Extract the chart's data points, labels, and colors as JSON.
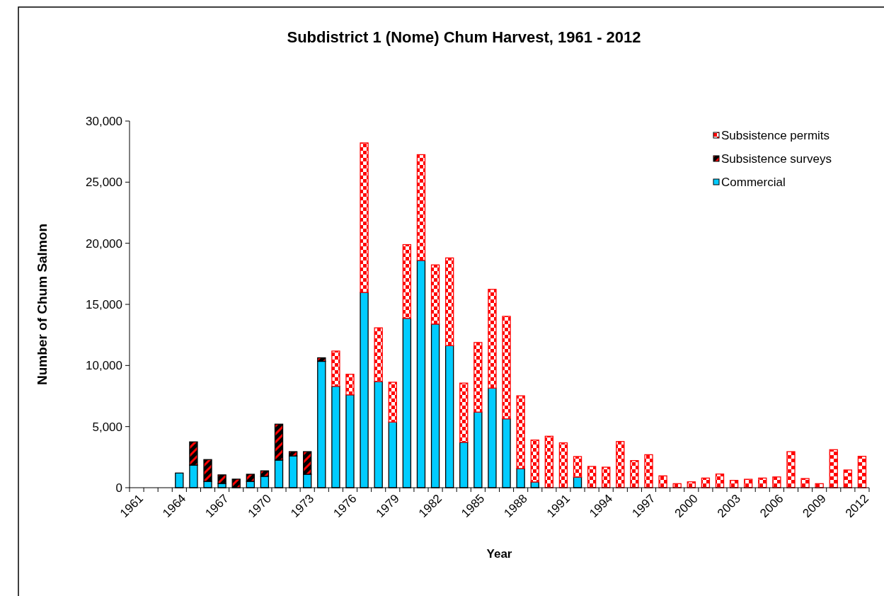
{
  "chart_data": {
    "type": "bar",
    "title": "Subdistrict 1 (Nome) Chum Harvest, 1961 - 2012",
    "xlabel": "Year",
    "ylabel": "Number of Chum Salmon",
    "stacked": true,
    "legend": "top right",
    "grid": false,
    "categories": [
      "1961",
      null,
      null,
      "1964",
      null,
      null,
      "1967",
      null,
      null,
      "1970",
      null,
      null,
      "1973",
      null,
      null,
      "1976",
      null,
      null,
      "1979",
      null,
      null,
      "1982",
      null,
      null,
      "1985",
      null,
      null,
      "1988",
      null,
      null,
      "1991",
      null,
      null,
      "1994",
      null,
      null,
      "1997",
      null,
      null,
      "2000",
      null,
      null,
      "2003",
      null,
      null,
      "2006",
      null,
      null,
      "2009",
      null,
      null,
      "2012"
    ],
    "ylim": [
      0,
      30000
    ],
    "yticks": [
      0,
      {
        "value": 5000,
        "label": "5,000"
      },
      {
        "value": 10000,
        "label": "10,000"
      },
      {
        "value": 15000,
        "label": "15,000"
      },
      {
        "value": 20000,
        "label": "20,000"
      },
      {
        "value": 25000,
        "label": "25,000"
      },
      {
        "value": 30000,
        "label": "30,000"
      }
    ],
    "series": [
      {
        "name": "Commercial",
        "color": "#00ccff",
        "values": [
          null,
          null,
          null,
          1200,
          1850,
          520,
          350,
          null,
          520,
          930,
          2260,
          2600,
          1100,
          10340,
          8300,
          7600,
          15980,
          8690,
          5370,
          13860,
          18600,
          13390,
          11630,
          3720,
          6190,
          8150,
          5640,
          1570,
          470,
          null,
          null,
          870,
          null,
          null,
          null,
          null,
          null,
          null,
          null,
          null,
          null,
          null,
          null,
          null,
          null,
          null,
          null,
          null,
          null,
          null,
          null,
          null
        ]
      },
      {
        "name": "Subsistence surveys",
        "color": "#000000",
        "values": [
          null,
          null,
          null,
          null,
          1900,
          1780,
          700,
          700,
          580,
          450,
          2940,
          350,
          1850,
          290,
          null,
          null,
          null,
          null,
          null,
          null,
          null,
          null,
          null,
          null,
          null,
          null,
          null,
          null,
          null,
          null,
          null,
          null,
          null,
          null,
          null,
          null,
          null,
          null,
          null,
          null,
          null,
          null,
          null,
          null,
          null,
          null,
          null,
          null,
          null,
          null,
          null,
          null
        ]
      },
      {
        "name": "Subsistence permits",
        "color": "#ff0000",
        "values": [
          null,
          null,
          null,
          null,
          null,
          null,
          null,
          null,
          null,
          null,
          null,
          null,
          null,
          null,
          2880,
          1680,
          12230,
          4390,
          3260,
          6030,
          8650,
          4840,
          7170,
          4840,
          5690,
          8080,
          8380,
          5950,
          3430,
          4210,
          3670,
          1680,
          1740,
          1680,
          3780,
          2220,
          2700,
          970,
          330,
          480,
          790,
          1120,
          600,
          690,
          790,
          880,
          2950,
          750,
          330,
          3110,
          1450,
          2570
        ]
      }
    ]
  }
}
